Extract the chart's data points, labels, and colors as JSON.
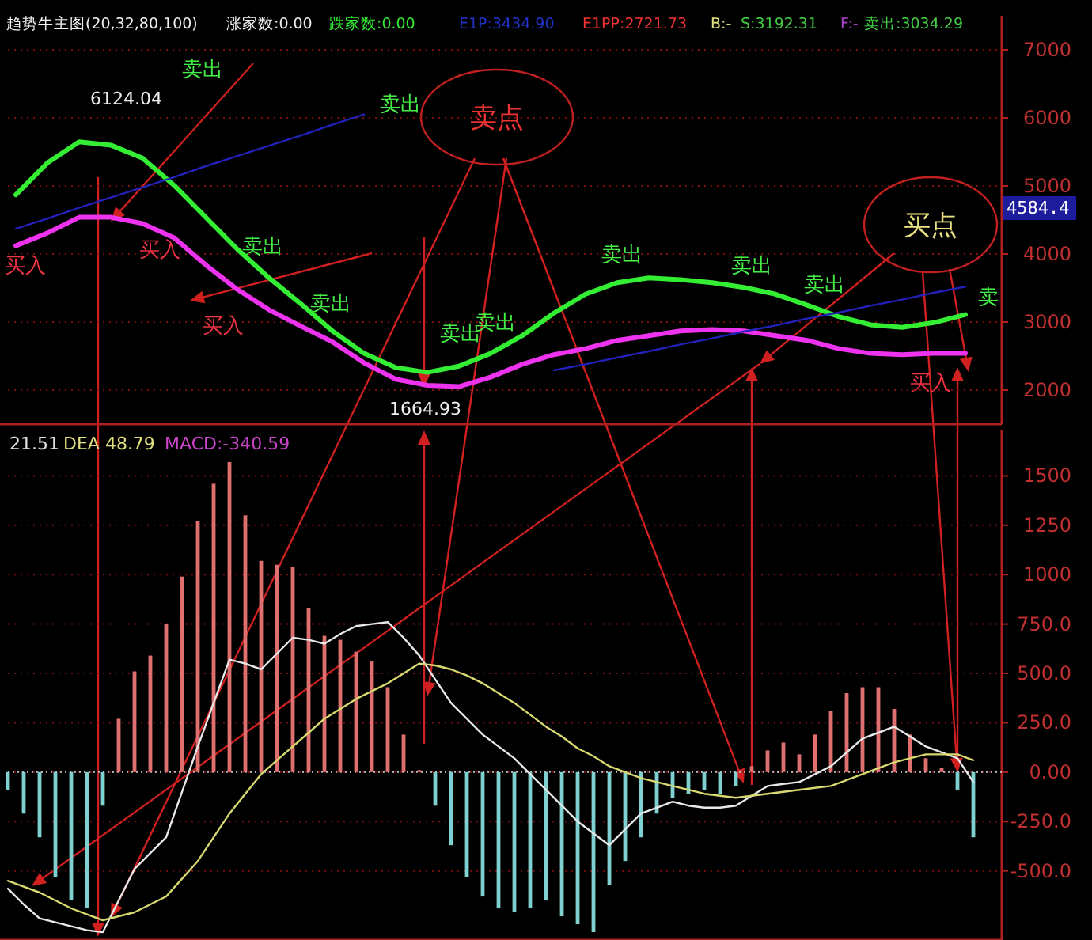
{
  "chart_data": [
    {
      "type": "line",
      "title": "趋势牛主图(20,32,80,100)",
      "categories": [
        null,
        null,
        null,
        null,
        null,
        null,
        null,
        null,
        null,
        null,
        null,
        null,
        null,
        null,
        null,
        null,
        null,
        null,
        null,
        null,
        null,
        null,
        null,
        null,
        null,
        null,
        null,
        null,
        null,
        null,
        null
      ],
      "series": [
        {
          "color": "#33ee33",
          "values": [
            4870,
            5340,
            5650,
            5600,
            5410,
            5010,
            4540,
            4070,
            3650,
            3270,
            2870,
            2540,
            2330,
            2260,
            2350,
            2540,
            2800,
            3130,
            3410,
            3580,
            3650,
            3620,
            3580,
            3510,
            3410,
            3250,
            3080,
            2960,
            2920,
            2990,
            3110
          ]
        },
        {
          "color": "#ee33ee",
          "values": [
            4120,
            4310,
            4540,
            4540,
            4450,
            4240,
            3840,
            3480,
            3180,
            2940,
            2710,
            2400,
            2160,
            2070,
            2050,
            2190,
            2380,
            2520,
            2610,
            2730,
            2800,
            2870,
            2890,
            2870,
            2800,
            2730,
            2610,
            2540,
            2520,
            2540,
            2540
          ]
        },
        {
          "color": "#2222bb",
          "values": [
            4370,
            4520,
            4680,
            4830,
            4980,
            5130,
            5290,
            5440,
            5590,
            5740,
            5900,
            6050,
            null,
            null,
            null,
            null,
            null,
            null,
            null,
            null,
            null,
            null,
            null,
            null,
            null,
            null,
            null,
            null,
            null,
            null,
            null
          ]
        },
        {
          "color": "#2222bb",
          "values": [
            null,
            null,
            null,
            null,
            null,
            null,
            null,
            null,
            null,
            null,
            null,
            null,
            null,
            null,
            null,
            null,
            null,
            2290,
            2380,
            2480,
            2570,
            2670,
            2760,
            2860,
            2950,
            3050,
            3140,
            3240,
            3330,
            3430,
            3520
          ]
        }
      ],
      "ylim": [
        1500,
        7500
      ],
      "yticks": [
        2000,
        3000,
        4000,
        5000,
        6000,
        7000
      ],
      "grid": "y",
      "annotations": [
        "涨家数:0.00",
        "跌家数:0.00",
        "E1P:3434.90",
        "E1PP:2721.73",
        "B:-",
        "S:3192.31",
        "F:-",
        "卖出:3034.29",
        "卖点",
        "买点",
        "6124.04",
        "1664.93",
        "4584.4",
        "卖出",
        "卖出",
        "卖出",
        "卖出",
        "卖出",
        "卖出",
        "卖出",
        "卖出",
        "卖出",
        "卖",
        "买入",
        "买入",
        "买入",
        "买入"
      ]
    },
    {
      "type": "bar",
      "categories": [
        null,
        null,
        null,
        null,
        null,
        null,
        null,
        null,
        null,
        null,
        null,
        null,
        null,
        null,
        null,
        null,
        null,
        null,
        null,
        null,
        null,
        null,
        null,
        null,
        null,
        null,
        null,
        null,
        null,
        null,
        null,
        null,
        null,
        null,
        null,
        null,
        null,
        null,
        null,
        null,
        null,
        null,
        null,
        null,
        null,
        null,
        null,
        null,
        null,
        null,
        null,
        null,
        null,
        null,
        null,
        null,
        null,
        null,
        null,
        null,
        null,
        null
      ],
      "series": [
        {
          "values": [
            -90,
            -210,
            -330,
            -530,
            -650,
            -690,
            -170,
            270,
            510,
            590,
            750,
            990,
            1270,
            1460,
            1570,
            1300,
            1070,
            1050,
            1040,
            830,
            690,
            670,
            610,
            560,
            430,
            190,
            10,
            -170,
            -370,
            -530,
            -630,
            -690,
            -710,
            -690,
            -650,
            -730,
            -770,
            -810,
            -570,
            -450,
            -330,
            -210,
            -130,
            -110,
            -90,
            -110,
            -70,
            30,
            110,
            150,
            90,
            190,
            310,
            400,
            430,
            430,
            320,
            190,
            70,
            20,
            -90,
            -330
          ],
          "colors": [
            "#7fd0d0",
            "#7fd0d0",
            "#7fd0d0",
            "#7fd0d0",
            "#7fd0d0",
            "#7fd0d0",
            "#7fd0d0",
            "#e07070",
            "#e07070",
            "#e07070",
            "#e07070",
            "#e07070",
            "#e07070",
            "#e07070",
            "#e07070",
            "#e07070",
            "#e07070",
            "#e07070",
            "#e07070",
            "#e07070",
            "#e07070",
            "#e07070",
            "#e07070",
            "#e07070",
            "#e07070",
            "#e07070",
            "#e07070",
            "#7fd0d0",
            "#7fd0d0",
            "#7fd0d0",
            "#7fd0d0",
            "#7fd0d0",
            "#7fd0d0",
            "#7fd0d0",
            "#7fd0d0",
            "#7fd0d0",
            "#7fd0d0",
            "#7fd0d0",
            "#7fd0d0",
            "#7fd0d0",
            "#7fd0d0",
            "#7fd0d0",
            "#7fd0d0",
            "#7fd0d0",
            "#7fd0d0",
            "#7fd0d0",
            "#7fd0d0",
            "#e07070",
            "#e07070",
            "#e07070",
            "#e07070",
            "#e07070",
            "#e07070",
            "#e07070",
            "#e07070",
            "#e07070",
            "#e07070",
            "#e07070",
            "#e07070",
            "#e07070",
            "#7fd0d0",
            "#7fd0d0"
          ]
        },
        {
          "type": "line",
          "color": "#e8e8e8",
          "values": [
            -590,
            -670,
            -740,
            -760,
            -780,
            -800,
            -810,
            -650,
            -490,
            -410,
            -330,
            -100,
            130,
            350,
            570,
            550,
            520,
            600,
            680,
            670,
            650,
            700,
            740,
            750,
            760,
            680,
            590,
            470,
            350,
            270,
            190,
            130,
            70,
            -10,
            -90,
            -170,
            -250,
            -310,
            -370,
            -290,
            -210,
            -180,
            -150,
            -170,
            -180,
            -180,
            -170,
            -120,
            -70,
            -60,
            -50,
            -10,
            30,
            100,
            170,
            200,
            230,
            180,
            130,
            100,
            70,
            -50
          ]
        },
        {
          "type": "line",
          "color": "#d8d870",
          "values": [
            -550,
            -580,
            -610,
            -650,
            -690,
            -720,
            -750,
            -730,
            -710,
            -670,
            -630,
            -540,
            -450,
            -330,
            -210,
            -110,
            -10,
            60,
            130,
            200,
            270,
            320,
            370,
            410,
            450,
            500,
            550,
            540,
            520,
            490,
            450,
            400,
            350,
            290,
            230,
            180,
            120,
            80,
            30,
            0,
            -30,
            -50,
            -70,
            -90,
            -110,
            -120,
            -130,
            -120,
            -110,
            -100,
            -90,
            -80,
            -70,
            -40,
            -10,
            20,
            50,
            70,
            90,
            90,
            90,
            60
          ]
        }
      ],
      "ylim": [
        -850,
        1730
      ],
      "yticks": [
        {
          "value": 1500,
          "label": "1500"
        },
        {
          "value": 1250,
          "label": "1250"
        },
        {
          "value": 1000,
          "label": "1000"
        },
        {
          "value": 750,
          "label": "750.0"
        },
        {
          "value": 500,
          "label": "500.0"
        },
        {
          "value": 250,
          "label": "250.0"
        },
        {
          "value": 0,
          "label": "0.00"
        },
        {
          "value": -250,
          "label": "-250.0"
        },
        {
          "value": -500,
          "label": "-500.0"
        }
      ],
      "grid": "y",
      "ref_lines": [
        {
          "axis": "y",
          "value": 0,
          "color": "#c0c0c0",
          "line_style": "dotted"
        }
      ],
      "annotations": [
        "21.51",
        "DEA 48.79",
        "MACD:-340.59"
      ]
    }
  ]
}
